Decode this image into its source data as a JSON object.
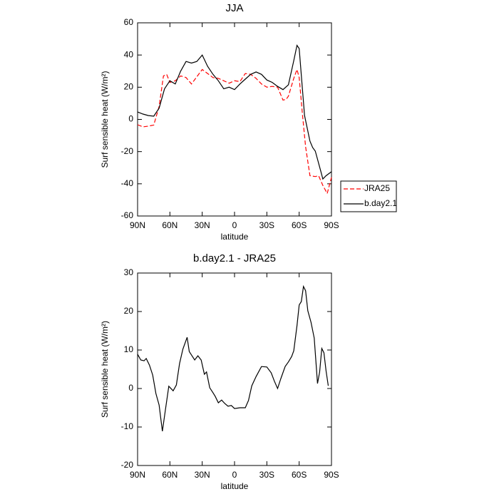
{
  "chart_data": [
    {
      "type": "line",
      "title": "JJA",
      "x_label": "latitude",
      "y_label": "Surf sensible heat (W/m²)",
      "xlim": [
        90,
        -90
      ],
      "ylim": [
        -60,
        60
      ],
      "xticks": [
        {
          "value": 90,
          "label": "90N"
        },
        {
          "value": 60,
          "label": "60N"
        },
        {
          "value": 30,
          "label": "30N"
        },
        0,
        {
          "value": -30,
          "label": "30S"
        },
        {
          "value": -60,
          "label": "60S"
        },
        {
          "value": -90,
          "label": "90S"
        }
      ],
      "yticks": [
        -60,
        -40,
        -20,
        0,
        20,
        40,
        60
      ],
      "legend": "right",
      "series": [
        {
          "name": "JRA25",
          "color": "#ff0000",
          "line_style": "dashed",
          "x": [
            90,
            85,
            80,
            75,
            70,
            66,
            63,
            60,
            55,
            50,
            45,
            40,
            35,
            30,
            25,
            20,
            15,
            10,
            5,
            0,
            -5,
            -10,
            -15,
            -20,
            -25,
            -30,
            -35,
            -40,
            -45,
            -48,
            -50,
            -55,
            -58,
            -60,
            -63,
            -66,
            -70,
            -75,
            -78,
            -82,
            -86,
            -90
          ],
          "values": [
            -3.3,
            -4.6,
            -4.2,
            -3.5,
            8,
            27,
            28,
            23,
            24,
            27,
            26,
            22,
            26.5,
            31,
            28.5,
            26,
            25.5,
            24,
            22.5,
            24,
            23.5,
            28.5,
            28,
            25.5,
            22,
            20,
            20.5,
            20,
            12,
            12.5,
            14.5,
            25.5,
            31,
            26,
            3.5,
            -17,
            -35,
            -35.5,
            -35,
            -41,
            -46,
            -36
          ]
        },
        {
          "name": "b.day2.1",
          "color": "#000000",
          "line_style": "solid",
          "x": [
            90,
            85,
            80,
            75,
            70,
            65,
            60,
            55,
            50,
            45,
            40,
            35,
            30,
            25,
            20,
            15,
            10,
            5,
            0,
            -5,
            -10,
            -15,
            -20,
            -25,
            -30,
            -35,
            -40,
            -45,
            -50,
            -55,
            -58,
            -60,
            -65,
            -70,
            -72.5,
            -75,
            -80,
            -82,
            -85,
            -90
          ],
          "values": [
            4.6,
            3.3,
            2.4,
            2,
            7,
            19,
            24,
            22,
            30,
            36,
            35,
            36,
            40,
            33,
            28,
            24,
            19,
            20,
            18.5,
            22,
            25,
            28,
            29.5,
            28,
            24.5,
            23,
            20.5,
            18.5,
            21.5,
            36.5,
            46,
            44,
            2.5,
            -13.5,
            -17.5,
            -19.7,
            -32,
            -37,
            -35,
            -32.5
          ]
        }
      ]
    },
    {
      "type": "line",
      "title": "b.day2.1 - JRA25",
      "x_label": "latitude",
      "y_label": "Surf sensible heat (W/m²)",
      "xlim": [
        90,
        -90
      ],
      "ylim": [
        -20,
        30
      ],
      "xticks": [
        {
          "value": 90,
          "label": "90N"
        },
        {
          "value": 60,
          "label": "60N"
        },
        {
          "value": 30,
          "label": "30N"
        },
        0,
        {
          "value": -30,
          "label": "30S"
        },
        {
          "value": -60,
          "label": "60S"
        },
        {
          "value": -90,
          "label": "90S"
        }
      ],
      "yticks": [
        -20,
        -10,
        0,
        10,
        20,
        30
      ],
      "series": [
        {
          "color": "#000000",
          "line_style": "solid",
          "x": [
            90,
            87,
            84,
            82,
            79,
            76,
            73,
            70,
            67,
            64,
            61,
            57,
            54,
            51,
            48,
            44,
            42,
            37,
            34,
            31,
            28,
            26,
            23,
            20,
            18,
            15,
            12,
            9,
            6,
            3,
            0,
            -5,
            -10,
            -13,
            -16,
            -20,
            -25,
            -30,
            -34,
            -37,
            -40,
            -43,
            -47,
            -50,
            -53,
            -55,
            -58,
            -60,
            -62,
            -64,
            -66,
            -68,
            -71,
            -74,
            -77,
            -79,
            -81,
            -83,
            -85,
            -87
          ],
          "values": [
            8.9,
            7.4,
            7.2,
            7.8,
            6.1,
            3.5,
            -1.3,
            -4.3,
            -11.1,
            -5.2,
            0.6,
            -0.6,
            0.9,
            6.5,
            10.2,
            13.3,
            9.6,
            7.4,
            8.5,
            7.4,
            3.7,
            4.3,
            0.2,
            -1.1,
            -2,
            -3.7,
            -3,
            -3.9,
            -4.6,
            -4.4,
            -5.2,
            -5,
            -5,
            -3.1,
            0.7,
            3.1,
            5.7,
            5.6,
            4.1,
            1.9,
            0,
            2.6,
            5.7,
            6.9,
            8.3,
            9.8,
            16.3,
            21.7,
            22.6,
            26.5,
            25.4,
            20.2,
            17.2,
            13.1,
            1.3,
            4.3,
            10.4,
            9.3,
            4.6,
            0.7
          ]
        }
      ]
    }
  ]
}
